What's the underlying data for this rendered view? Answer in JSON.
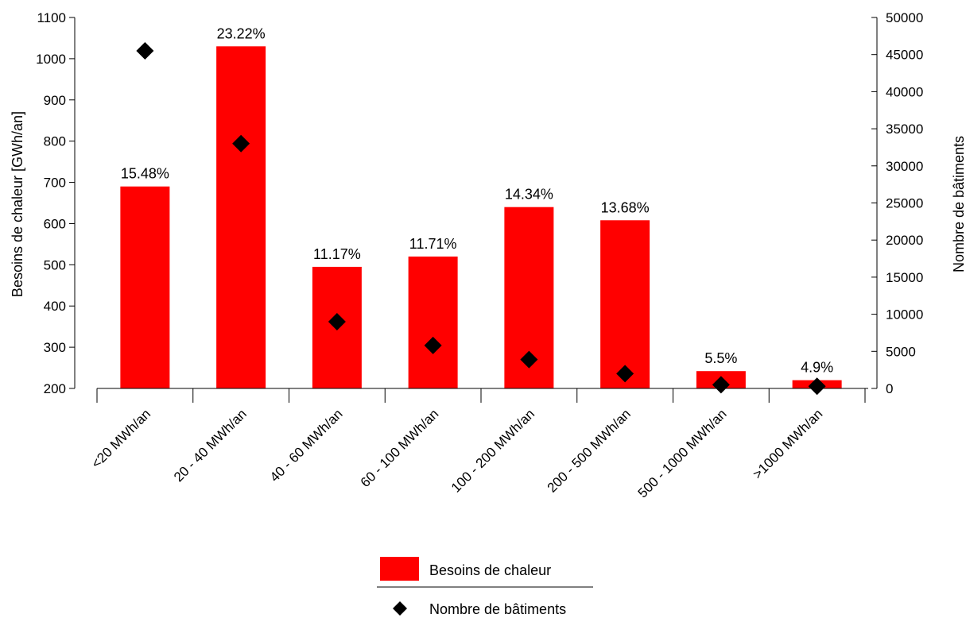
{
  "chart_data": {
    "type": "bar",
    "categories": [
      "<20 MWh/an",
      "20 - 40 MWh/an",
      "40 - 60 MWh/an",
      "60 - 100 MWh/an",
      "100 - 200 MWh/an",
      "200 - 500 MWh/an",
      "500 - 1000 MWh/an",
      ">1000 MWh/an"
    ],
    "series": [
      {
        "name": "Besoins de chaleur",
        "type": "bar",
        "axis": "left",
        "color": "#ff0000",
        "values": [
          690,
          1030,
          495,
          520,
          640,
          608,
          242,
          220
        ],
        "labels": [
          "15.48%",
          "23.22%",
          "11.17%",
          "11.71%",
          "14.34%",
          "13.68%",
          "5.5%",
          "4.9%"
        ]
      },
      {
        "name": "Nombre de bâtiments",
        "type": "scatter",
        "axis": "right",
        "color": "#000000",
        "marker": "diamond",
        "values": [
          45500,
          33000,
          9000,
          5800,
          3900,
          2000,
          500,
          300
        ]
      }
    ],
    "ylabel": "Besoins de chaleur [GWh/an]",
    "ylabel_right": "Nombre de bâtiments",
    "ylim": [
      200,
      1100
    ],
    "yticks": [
      200,
      300,
      400,
      500,
      600,
      700,
      800,
      900,
      1000,
      1100
    ],
    "ylim_right": [
      0,
      50000
    ],
    "yticks_right": [
      0,
      5000,
      10000,
      15000,
      20000,
      25000,
      30000,
      35000,
      40000,
      45000,
      50000
    ],
    "grid": false,
    "legend_position": "bottom-center"
  }
}
